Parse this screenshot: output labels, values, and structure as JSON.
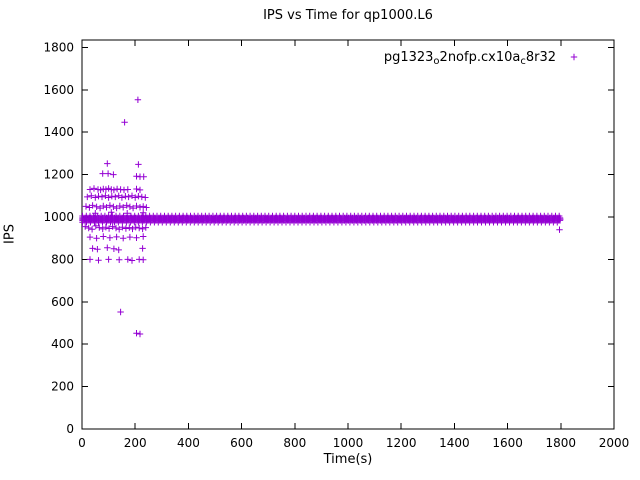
{
  "chart_data": {
    "type": "scatter",
    "title": "IPS vs Time for qp1000.L6",
    "xlabel": "Time(s)",
    "ylabel": "IPS",
    "xlim": [
      0,
      2000
    ],
    "ylim": [
      0,
      1800
    ],
    "xticks": [
      0,
      200,
      400,
      600,
      800,
      1000,
      1200,
      1400,
      1600,
      1800,
      2000
    ],
    "yticks": [
      0,
      200,
      400,
      600,
      800,
      1000,
      1200,
      1400,
      1600,
      1800
    ],
    "grid": false,
    "legend_position": "top-right-inside",
    "marker_color": "#9400d3",
    "series": [
      {
        "name": "pg1323_o2nofp.cx10a_c8r32",
        "label_parts": [
          {
            "text": "pg1323"
          },
          {
            "text": "o",
            "sub": true
          },
          {
            "text": "2nofp.cx10a"
          },
          {
            "text": "c",
            "sub": true
          },
          {
            "text": "8r32"
          }
        ],
        "marker": "plus",
        "color": "#9400d3",
        "steady_band": {
          "description": "dense horizontal band of plus markers (steady-state IPS ~990)",
          "y_center": 990,
          "y_min": 975,
          "y_max": 1005,
          "x_start": 2,
          "x_end": 1800
        },
        "outliers": [
          [
            210,
            1553
          ],
          [
            160,
            1447
          ],
          [
            95,
            1252
          ],
          [
            212,
            1248
          ],
          [
            78,
            1205
          ],
          [
            98,
            1205
          ],
          [
            118,
            1200
          ],
          [
            205,
            1192
          ],
          [
            218,
            1190
          ],
          [
            232,
            1190
          ],
          [
            30,
            1130
          ],
          [
            45,
            1135
          ],
          [
            60,
            1130
          ],
          [
            70,
            1128
          ],
          [
            80,
            1132
          ],
          [
            90,
            1130
          ],
          [
            100,
            1135
          ],
          [
            110,
            1130
          ],
          [
            120,
            1128
          ],
          [
            132,
            1132
          ],
          [
            145,
            1130
          ],
          [
            158,
            1128
          ],
          [
            172,
            1130
          ],
          [
            205,
            1132
          ],
          [
            218,
            1128
          ],
          [
            20,
            1095
          ],
          [
            35,
            1100
          ],
          [
            50,
            1092
          ],
          [
            62,
            1098
          ],
          [
            75,
            1095
          ],
          [
            88,
            1100
          ],
          [
            100,
            1092
          ],
          [
            112,
            1098
          ],
          [
            125,
            1095
          ],
          [
            138,
            1100
          ],
          [
            150,
            1092
          ],
          [
            163,
            1098
          ],
          [
            175,
            1095
          ],
          [
            188,
            1100
          ],
          [
            200,
            1092
          ],
          [
            212,
            1098
          ],
          [
            225,
            1095
          ],
          [
            238,
            1092
          ],
          [
            15,
            1050
          ],
          [
            28,
            1045
          ],
          [
            40,
            1055
          ],
          [
            55,
            1048
          ],
          [
            68,
            1042
          ],
          [
            80,
            1052
          ],
          [
            92,
            1046
          ],
          [
            105,
            1055
          ],
          [
            118,
            1048
          ],
          [
            130,
            1042
          ],
          [
            142,
            1052
          ],
          [
            155,
            1046
          ],
          [
            168,
            1055
          ],
          [
            180,
            1048
          ],
          [
            192,
            1042
          ],
          [
            205,
            1052
          ],
          [
            218,
            1046
          ],
          [
            230,
            1050
          ],
          [
            242,
            1045
          ],
          [
            50,
            1018
          ],
          [
            110,
            1022
          ],
          [
            170,
            1018
          ],
          [
            230,
            1020
          ],
          [
            12,
            955
          ],
          [
            25,
            948
          ],
          [
            38,
            942
          ],
          [
            52,
            958
          ],
          [
            65,
            950
          ],
          [
            78,
            944
          ],
          [
            90,
            952
          ],
          [
            102,
            946
          ],
          [
            115,
            955
          ],
          [
            128,
            948
          ],
          [
            140,
            942
          ],
          [
            152,
            952
          ],
          [
            165,
            946
          ],
          [
            178,
            950
          ],
          [
            190,
            944
          ],
          [
            202,
            952
          ],
          [
            215,
            948
          ],
          [
            228,
            944
          ],
          [
            240,
            950
          ],
          [
            30,
            905
          ],
          [
            55,
            900
          ],
          [
            80,
            908
          ],
          [
            105,
            902
          ],
          [
            130,
            906
          ],
          [
            155,
            900
          ],
          [
            180,
            905
          ],
          [
            205,
            902
          ],
          [
            230,
            908
          ],
          [
            40,
            852
          ],
          [
            58,
            848
          ],
          [
            95,
            855
          ],
          [
            120,
            850
          ],
          [
            138,
            845
          ],
          [
            228,
            852
          ],
          [
            30,
            800
          ],
          [
            62,
            796
          ],
          [
            100,
            800
          ],
          [
            140,
            798
          ],
          [
            172,
            800
          ],
          [
            188,
            795
          ],
          [
            215,
            800
          ],
          [
            230,
            798
          ],
          [
            145,
            552
          ],
          [
            205,
            452
          ],
          [
            218,
            448
          ],
          [
            1795,
            940
          ]
        ]
      }
    ]
  }
}
